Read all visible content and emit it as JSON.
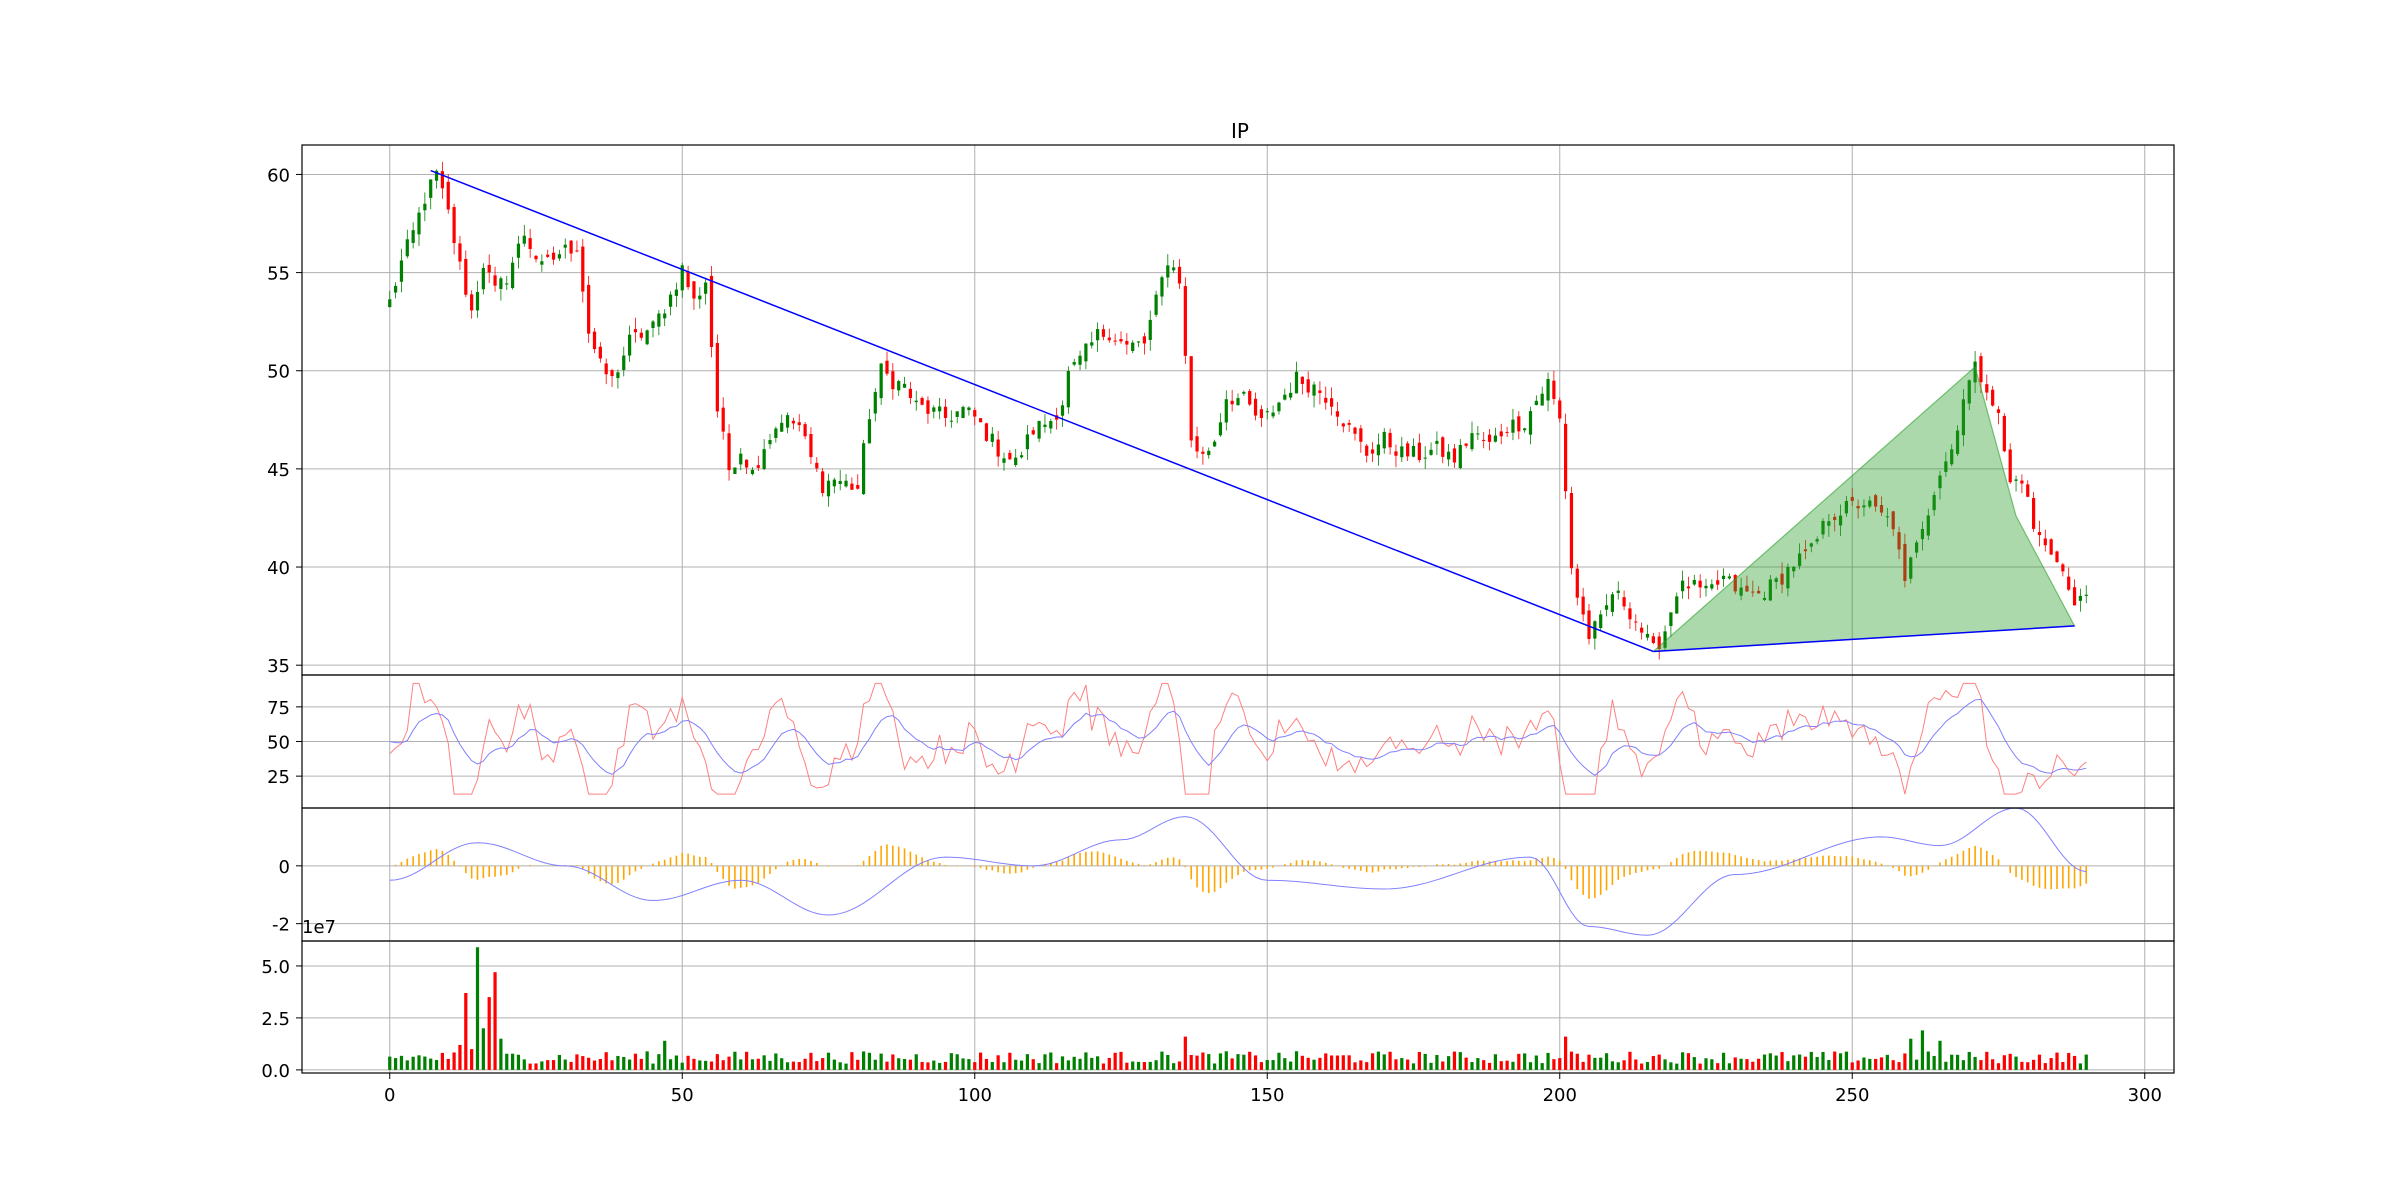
{
  "chart_data": {
    "type": "candlestick",
    "title": "IP",
    "x_range": [
      -15,
      305
    ],
    "x_ticks": [
      0,
      50,
      100,
      150,
      200,
      250,
      300
    ],
    "grid": true,
    "colors": {
      "up": "#008000",
      "down": "#ff0000",
      "trendline": "#0000ff",
      "pattern_fill": "#2ca02c",
      "pattern_edge": "#2ca02c",
      "rsi_fast": "#ff8080",
      "rsi_slow": "#8080ff",
      "macd_hist": "#ffa500",
      "macd_line": "#8080ff"
    },
    "price_panel": {
      "y_range": [
        34.5,
        61.5
      ],
      "y_ticks": [
        35,
        40,
        45,
        50,
        55,
        60
      ],
      "close_anchors": [
        [
          0,
          53.5
        ],
        [
          2,
          55.5
        ],
        [
          4,
          57
        ],
        [
          6,
          58.8
        ],
        [
          8,
          60
        ],
        [
          10,
          58
        ],
        [
          12,
          55.3
        ],
        [
          14,
          53
        ],
        [
          16,
          55.5
        ],
        [
          18,
          54
        ],
        [
          20,
          54.8
        ],
        [
          23,
          57
        ],
        [
          26,
          55.2
        ],
        [
          29,
          56
        ],
        [
          32,
          56.4
        ],
        [
          34,
          52
        ],
        [
          36,
          50.2
        ],
        [
          38,
          49.5
        ],
        [
          41,
          51.5
        ],
        [
          45,
          52.2
        ],
        [
          48,
          53.8
        ],
        [
          50,
          55.2
        ],
        [
          52,
          53.5
        ],
        [
          54,
          54.6
        ],
        [
          56,
          48
        ],
        [
          58,
          45
        ],
        [
          60,
          46
        ],
        [
          62,
          44.8
        ],
        [
          64,
          46.2
        ],
        [
          67,
          47.6
        ],
        [
          70,
          47.2
        ],
        [
          72,
          45.5
        ],
        [
          74,
          44.2
        ],
        [
          76,
          44.5
        ],
        [
          80,
          44
        ],
        [
          82,
          47.8
        ],
        [
          84,
          50
        ],
        [
          86,
          49.5
        ],
        [
          88,
          49.2
        ],
        [
          90,
          48.2
        ],
        [
          92,
          48
        ],
        [
          95,
          47.6
        ],
        [
          98,
          48
        ],
        [
          100,
          47.6
        ],
        [
          104,
          46
        ],
        [
          107,
          45.3
        ],
        [
          110,
          47
        ],
        [
          113,
          47.5
        ],
        [
          115,
          48.4
        ],
        [
          116,
          49.8
        ],
        [
          118,
          50.5
        ],
        [
          121,
          51.8
        ],
        [
          123,
          52
        ],
        [
          126,
          51.2
        ],
        [
          129,
          51.4
        ],
        [
          131,
          53.5
        ],
        [
          133,
          55.7
        ],
        [
          135,
          54.7
        ],
        [
          137,
          46.5
        ],
        [
          139,
          45.6
        ],
        [
          141,
          46.5
        ],
        [
          143,
          48.7
        ],
        [
          146,
          48.5
        ],
        [
          149,
          47.3
        ],
        [
          152,
          48.4
        ],
        [
          155,
          49.6
        ],
        [
          158,
          49.2
        ],
        [
          161,
          48.5
        ],
        [
          164,
          47
        ],
        [
          167,
          45.8
        ],
        [
          170,
          46.5
        ],
        [
          173,
          45.8
        ],
        [
          176,
          45.7
        ],
        [
          179,
          46
        ],
        [
          182,
          45.5
        ],
        [
          185,
          46.8
        ],
        [
          188,
          46.2
        ],
        [
          191,
          47.2
        ],
        [
          194,
          47.4
        ],
        [
          196,
          48.5
        ],
        [
          198,
          49.4
        ],
        [
          200,
          47.5
        ],
        [
          201,
          44
        ],
        [
          202,
          40
        ],
        [
          203,
          38.5
        ],
        [
          205,
          36.5
        ],
        [
          207,
          37.2
        ],
        [
          209,
          38.7
        ],
        [
          211,
          38.2
        ],
        [
          213,
          37.3
        ],
        [
          215,
          36.2
        ],
        [
          216,
          35.7
        ],
        [
          218,
          36.8
        ],
        [
          220,
          38.8
        ],
        [
          222,
          39.1
        ],
        [
          225,
          38.6
        ],
        [
          228,
          39.4
        ],
        [
          231,
          38.7
        ],
        [
          234,
          38.6
        ],
        [
          237,
          39.2
        ],
        [
          240,
          40.2
        ],
        [
          243,
          40.8
        ],
        [
          246,
          42.6
        ],
        [
          249,
          43
        ],
        [
          252,
          43.3
        ],
        [
          255,
          42.6
        ],
        [
          257,
          42.2
        ],
        [
          259,
          39
        ],
        [
          261,
          41.5
        ],
        [
          263,
          43
        ],
        [
          265,
          44.8
        ],
        [
          267,
          46
        ],
        [
          269,
          48.7
        ],
        [
          271,
          50.1
        ],
        [
          273,
          49.3
        ],
        [
          275,
          47.6
        ],
        [
          277,
          44.2
        ],
        [
          279,
          44.6
        ],
        [
          281,
          42
        ],
        [
          283,
          41
        ],
        [
          285,
          40.6
        ],
        [
          287,
          38.8
        ],
        [
          288,
          37.8
        ],
        [
          289,
          38.6
        ],
        [
          290,
          39
        ]
      ],
      "trendline_1": [
        [
          7,
          60.2
        ],
        [
          216,
          35.7
        ]
      ],
      "trendline_2": [
        [
          216,
          35.7
        ],
        [
          288,
          37.0
        ]
      ],
      "pattern_shape_points": [
        [
          216,
          35.7
        ],
        [
          271,
          50.2
        ],
        [
          278,
          42.6
        ],
        [
          288,
          37.0
        ]
      ]
    },
    "rsi_panel": {
      "y_range": [
        2,
        98
      ],
      "y_ticks": [
        25,
        50,
        75
      ]
    },
    "macd_panel": {
      "y_range": [
        -2.6,
        2.0
      ],
      "y_ticks": [
        -2,
        0
      ]
    },
    "volume_panel": {
      "y_range": [
        -1500000.0,
        62000000.0
      ],
      "y_ticks": [
        0,
        25000000,
        50000000
      ],
      "y_tick_labels": [
        "0.0",
        "2.5",
        "5.0"
      ],
      "offset_text": "1e7"
    }
  }
}
